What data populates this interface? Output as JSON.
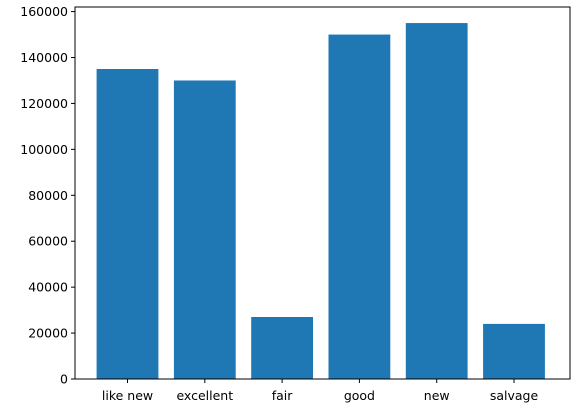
{
  "chart_data": {
    "type": "bar",
    "title": "",
    "xlabel": "",
    "ylabel": "",
    "categories": [
      "like new",
      "excellent",
      "fair",
      "good",
      "new",
      "salvage"
    ],
    "values": [
      135000,
      130000,
      27000,
      150000,
      155000,
      24000
    ],
    "ylim": [
      0,
      162000
    ],
    "yticks": [
      0,
      20000,
      40000,
      60000,
      80000,
      100000,
      120000,
      140000,
      160000
    ],
    "bar_color": "#1f77b4",
    "grid": false,
    "legend": "none"
  }
}
